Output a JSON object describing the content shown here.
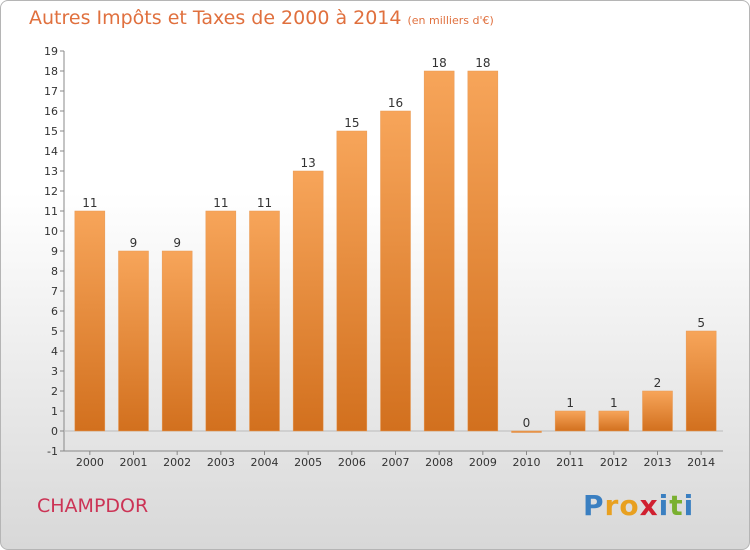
{
  "header": {
    "title": "Autres Impôts et Taxes de 2000 à 2014",
    "subtitle": "(en milliers d'€)"
  },
  "place": "CHAMPDOR",
  "logo": {
    "text": "Proxiti",
    "letters": [
      "P",
      "r",
      "o",
      "x",
      "i",
      "t",
      "i"
    ],
    "colors": [
      "#3a7fc1",
      "#e8a020",
      "#e8a020",
      "#d02030",
      "#3a7fc1",
      "#7ab030",
      "#3a7fc1"
    ]
  },
  "colors": {
    "bar_light": "#f7a55a",
    "bar_dark": "#d2701e",
    "title": "#e0703e",
    "place": "#cc3355"
  },
  "chart_data": {
    "type": "bar",
    "categories": [
      "2000",
      "2001",
      "2002",
      "2003",
      "2004",
      "2005",
      "2006",
      "2007",
      "2008",
      "2009",
      "2010",
      "2011",
      "2012",
      "2013",
      "2014"
    ],
    "values": [
      11,
      9,
      9,
      11,
      11,
      13,
      15,
      16,
      18,
      18,
      0,
      1,
      1,
      2,
      5
    ],
    "value_labels": [
      "11",
      "9",
      "9",
      "11",
      "11",
      "13",
      "15",
      "16",
      "18",
      "18",
      "0",
      "1",
      "1",
      "2",
      "5"
    ],
    "y_ticks": [
      "-1",
      "0",
      "1",
      "2",
      "3",
      "4",
      "5",
      "6",
      "7",
      "8",
      "9",
      "10",
      "11",
      "12",
      "13",
      "14",
      "15",
      "16",
      "17",
      "18",
      "19"
    ],
    "ylim": [
      -1,
      19
    ],
    "grid": false,
    "title": "Autres Impôts et Taxes de 2000 à 2014",
    "ylabel": "(en milliers d'€)"
  }
}
